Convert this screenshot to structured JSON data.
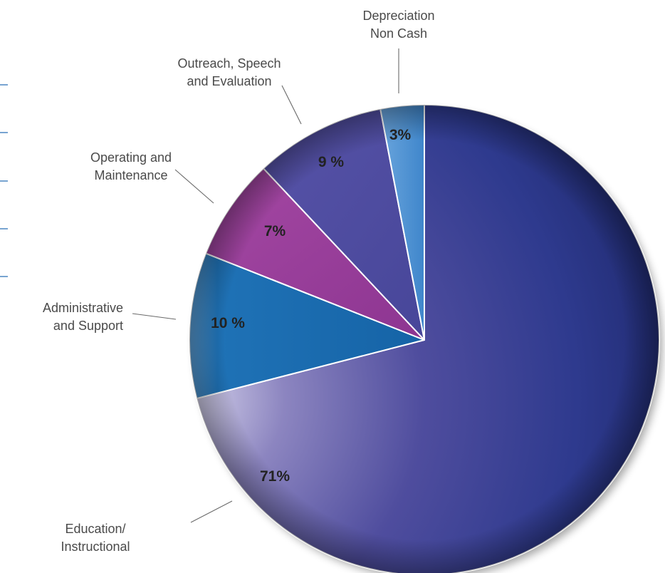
{
  "chart_data": {
    "type": "pie",
    "title": "",
    "slices": [
      {
        "name": "Education/ Instructional",
        "lines": [
          "Education/",
          "Instructional"
        ],
        "value": 71,
        "label": "71%",
        "color": "#2e3a8e"
      },
      {
        "name": "Administrative and Support",
        "lines": [
          "Administrative",
          "and Support"
        ],
        "value": 10,
        "label": "10 %",
        "color": "#1a6cb0"
      },
      {
        "name": "Operating and Maintenance",
        "lines": [
          "Operating and",
          "Maintenance"
        ],
        "value": 7,
        "label": "7%",
        "color": "#9a3c98"
      },
      {
        "name": "Outreach, Speech and Evaluation",
        "lines": [
          "Outreach, Speech",
          "and Evaluation"
        ],
        "value": 9,
        "label": "9 %",
        "color": "#4e4ea0"
      },
      {
        "name": "Depreciation Non Cash",
        "lines": [
          "Depreciation",
          "Non Cash"
        ],
        "value": 3,
        "label": "3%",
        "color": "#4a8fd0"
      }
    ]
  },
  "colors": {
    "decorative_lines": "#2f73b8",
    "leader_lines": "#6a6a6a"
  }
}
